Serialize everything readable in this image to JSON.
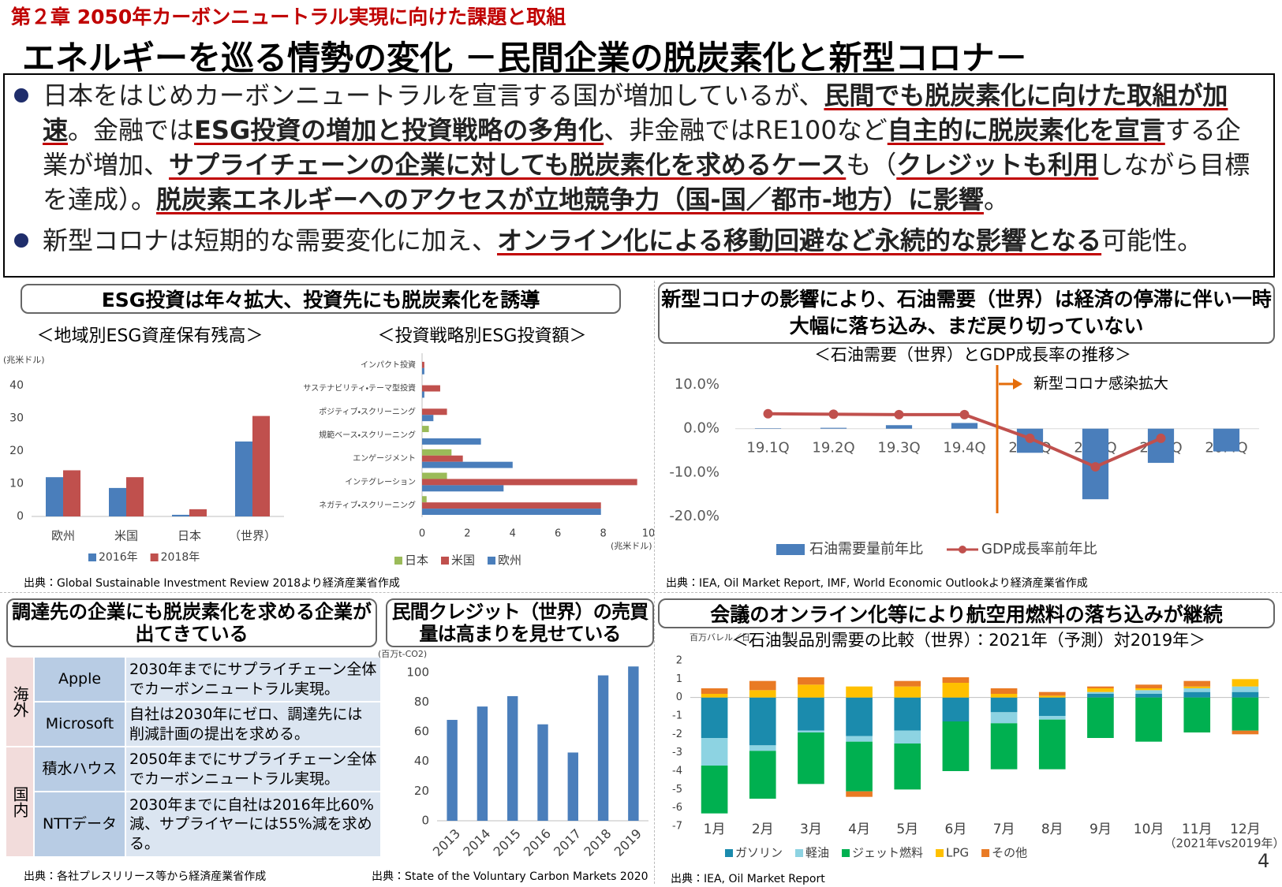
{
  "header": {
    "chapter": "第２章 2050年カーボンニュートラル実現に向けた課題と取組",
    "title": "エネルギーを巡る情勢の変化 －民間企業の脱炭素化と新型コロナ－"
  },
  "bullets": [
    [
      {
        "text": "日本をはじめカーボンニュートラルを宣言する国が増加しているが、",
        "bold": false
      },
      {
        "text": "民間でも脱炭素化に向けた取組が加速",
        "bold": true
      },
      {
        "text": "。金融では",
        "bold": false
      },
      {
        "text": "ESG投資の増加と投資戦略の多角化",
        "bold": true
      },
      {
        "text": "、非金融ではRE100など",
        "bold": false
      },
      {
        "text": "自主的に脱炭素化を宣言",
        "bold": true
      },
      {
        "text": "する企業が増加、",
        "bold": false
      },
      {
        "text": "サプライチェーンの企業に対しても脱炭素化を求めるケース",
        "bold": true
      },
      {
        "text": "も（",
        "bold": false
      },
      {
        "text": "クレジットも利用",
        "bold": true
      },
      {
        "text": "しながら目標を達成）。",
        "bold": false
      },
      {
        "text": "脱炭素エネルギーへのアクセスが立地競争力（国-国／都市-地方）に影響",
        "bold": true
      },
      {
        "text": "。",
        "bold": false
      }
    ],
    [
      {
        "text": "新型コロナは短期的な需要変化に加え、",
        "bold": false
      },
      {
        "text": "オンライン化による移動回避など永続的な影響となる",
        "bold": true
      },
      {
        "text": "可能性。",
        "bold": false
      }
    ]
  ],
  "panels": [
    "ESG投資は年々拡大、投資先にも脱炭素化を誘導",
    "新型コロナの影響により、石油需要（世界）は経済の停滞に伴い一時大幅に落ち込み、まだ戻り切っていない",
    "調達先の企業にも脱炭素化を求める企業が出てきている",
    "民間クレジット（世界）の売買量は高まりを見せている",
    "会議のオンライン化等により航空用燃料の落ち込みが継続"
  ],
  "table": {
    "groups": [
      {
        "region": "海外",
        "rows": [
          [
            "Apple",
            "2030年までにサプライチェーン全体でカーボンニュートラル実現。"
          ],
          [
            "Microsoft",
            "自社は2030年にゼロ、調達先には削減計画の提出を求める。"
          ]
        ]
      },
      {
        "region": "国内",
        "rows": [
          [
            "積水ハウス",
            "2050年までにサプライチェーン全体でカーボンニュートラル実現。"
          ],
          [
            "NTTデータ",
            "2030年までに自社は2016年比60%減、サプライヤーには55%減を求める。"
          ]
        ]
      }
    ]
  },
  "sources": [
    "出典：Global Sustainable Investment Review 2018より経済産業省作成",
    "出典：IEA, Oil Market Report, IMF, World Economic Outlookより経済産業省作成",
    "出典：各社プレスリリース等から経済産業省作成",
    "出典：State of the Voluntary Carbon Markets 2020",
    "出典：IEA, Oil Market Report"
  ],
  "page_number": "4",
  "chart_data": [
    {
      "type": "bar",
      "title": "＜地域別ESG資産保有残高＞",
      "y_unit": "(兆米ドル)",
      "categories": [
        "欧州",
        "米国",
        "日本",
        "（世界）"
      ],
      "series": [
        {
          "name": "2016年",
          "color": "#4a7ebb",
          "values": [
            12.0,
            8.7,
            0.5,
            22.9
          ]
        },
        {
          "name": "2018年",
          "color": "#c0504d",
          "values": [
            14.1,
            12.0,
            2.2,
            30.7
          ]
        }
      ],
      "ylim": [
        0,
        40
      ],
      "yticks": [
        0,
        10,
        20,
        30,
        40
      ]
    },
    {
      "type": "bar",
      "orientation": "horizontal",
      "title": "＜投資戦略別ESG投資額＞",
      "x_unit": "(兆米ドル)",
      "categories": [
        "インパクト投資",
        "サステナビリティ・テーマ型投資",
        "ポジティブ・スクリーニング",
        "規範ベース・スクリーニング",
        "エンゲージメント",
        "インテグレーション",
        "ネガティブ・スクリーニング"
      ],
      "series": [
        {
          "name": "日本",
          "color": "#9bbb59",
          "values": [
            0.0,
            0.0,
            0.0,
            0.3,
            1.3,
            1.1,
            0.2
          ]
        },
        {
          "name": "米国",
          "color": "#c0504d",
          "values": [
            0.1,
            0.8,
            1.1,
            0.0,
            1.8,
            9.5,
            7.9
          ]
        },
        {
          "name": "欧州",
          "color": "#4a7ebb",
          "values": [
            0.1,
            0.1,
            0.5,
            2.6,
            4.0,
            3.6,
            7.9
          ]
        }
      ],
      "xlim": [
        0,
        10
      ],
      "xticks": [
        0,
        2,
        4,
        6,
        8,
        10
      ]
    },
    {
      "type": "combo",
      "title": "＜石油需要（世界）とGDP成長率の推移＞",
      "annotation": "新型コロナ感染拡大",
      "categories": [
        "19.1Q",
        "19.2Q",
        "19.3Q",
        "19.4Q",
        "20.1Q",
        "20.2Q",
        "20.3Q",
        "20.4Q"
      ],
      "series": [
        {
          "name": "石油需要量前年比",
          "type": "bar",
          "color": "#4a7ebb",
          "values": [
            0.1,
            0.2,
            0.8,
            1.3,
            -5.5,
            -16.1,
            -7.8,
            -5.2
          ]
        },
        {
          "name": "GDP成長率前年比",
          "type": "line",
          "color": "#c0504d",
          "values": [
            3.4,
            3.3,
            3.2,
            3.2,
            -2.2,
            -8.7,
            -2.2,
            null
          ]
        }
      ],
      "annotation_color": "#e46c0a",
      "ylim": [
        -22,
        12
      ],
      "yticks": [
        {
          "value": -20,
          "label": "-20.0%"
        },
        {
          "value": -10,
          "label": "-10.0%"
        },
        {
          "value": 0,
          "label": "0.0%"
        },
        {
          "value": 10,
          "label": "10.0%"
        }
      ]
    },
    {
      "type": "bar",
      "y_unit": "(百万t-CO2)",
      "categories": [
        "2013",
        "2014",
        "2015",
        "2016",
        "2017",
        "2018",
        "2019"
      ],
      "values": [
        68,
        77,
        84,
        65,
        46,
        98,
        104
      ],
      "color": "#4a7ebb",
      "ylim": [
        0,
        110
      ],
      "yticks": [
        0,
        20,
        40,
        60,
        80,
        100
      ]
    },
    {
      "type": "bar",
      "stacked": true,
      "title": "＜石油製品別需要の比較（世界）：2021年（予測）対2019年＞",
      "y_unit": "百万バレル／日",
      "note": "（2021年vs2019年）",
      "categories": [
        "1月",
        "2月",
        "3月",
        "4月",
        "5月",
        "6月",
        "7月",
        "8月",
        "9月",
        "10月",
        "11月",
        "12月"
      ],
      "series": [
        {
          "name": "ガソリン",
          "color": "#1b8bad",
          "values": [
            -2.2,
            -2.6,
            -1.8,
            -2.1,
            -1.8,
            -1.3,
            -0.8,
            -1.0,
            0.2,
            0.2,
            0.3,
            0.3
          ]
        },
        {
          "name": "軽油",
          "color": "#8dd3e2",
          "values": [
            -1.5,
            -0.3,
            -0.1,
            -0.3,
            -0.7,
            0.0,
            -0.6,
            -0.2,
            0.1,
            0.2,
            0.2,
            0.3
          ]
        },
        {
          "name": "ジェット燃料",
          "color": "#00b050",
          "values": [
            -2.6,
            -2.6,
            -2.8,
            -2.7,
            -2.5,
            -2.7,
            -2.5,
            -2.7,
            -2.2,
            -2.4,
            -1.9,
            -1.8
          ]
        },
        {
          "name": "LPG",
          "color": "#ffc000",
          "values": [
            0.2,
            0.4,
            0.7,
            0.6,
            0.6,
            0.8,
            0.2,
            0.1,
            0.2,
            0.1,
            0.1,
            0.4
          ]
        },
        {
          "name": "その他",
          "color": "#e97a24",
          "values": [
            0.3,
            0.5,
            0.4,
            -0.3,
            0.3,
            0.3,
            0.3,
            0.2,
            0.1,
            0.2,
            0.3,
            -0.2
          ]
        }
      ],
      "ylim": [
        -7,
        2
      ],
      "yticks": [
        -7,
        -6,
        -5,
        -4,
        -3,
        -2,
        -1,
        0,
        1,
        2
      ]
    }
  ]
}
